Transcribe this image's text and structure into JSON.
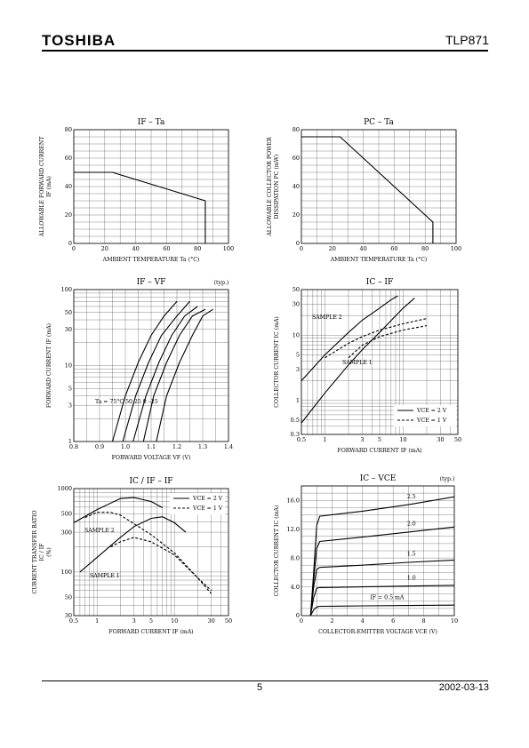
{
  "header": {
    "brand": "TOSHIBA",
    "part_number": "TLP871"
  },
  "footer": {
    "page": "5",
    "date": "2002-03-13"
  },
  "chart_data": [
    {
      "id": "if_ta",
      "type": "line",
      "title": "IF – Ta",
      "xlabel": "AMBIENT TEMPERATURE Ta (°C)",
      "ylabel_lines": [
        "ALLOWABLE FORWARD CURRENT",
        "IF (mA)"
      ],
      "xlim": [
        0,
        100
      ],
      "ylim": [
        0,
        80
      ],
      "x_ticks": [
        0,
        20,
        40,
        60,
        80,
        100
      ],
      "y_ticks": [
        0,
        20,
        40,
        60,
        80
      ],
      "grid": true,
      "xlog": false,
      "ylog": false,
      "series": [
        {
          "x": [
            0,
            25,
            85,
            85
          ],
          "y": [
            50,
            50,
            30,
            0
          ]
        }
      ]
    },
    {
      "id": "pc_ta",
      "type": "line",
      "title": "PC – Ta",
      "xlabel": "AMBIENT TEMPERATURE Ta (°C)",
      "ylabel_lines": [
        "ALLOWABLE COLLECTOR POWER",
        "DISSIPATION PC (mW)"
      ],
      "xlim": [
        0,
        100
      ],
      "ylim": [
        0,
        80
      ],
      "x_ticks": [
        0,
        20,
        40,
        60,
        80,
        100
      ],
      "y_ticks": [
        0,
        20,
        40,
        60,
        80
      ],
      "grid": true,
      "xlog": false,
      "ylog": false,
      "series": [
        {
          "x": [
            0,
            25,
            85,
            85
          ],
          "y": [
            75,
            75,
            15,
            0
          ]
        }
      ]
    },
    {
      "id": "if_vf",
      "type": "line",
      "title": "IF – VF",
      "title_note": "(typ.)",
      "xlabel": "FORWARD VOLTAGE VF (V)",
      "ylabel_lines": [
        "FORWARD CURRENT IF (mA)"
      ],
      "xlim": [
        0.8,
        1.4
      ],
      "ylim": [
        1,
        100
      ],
      "x_ticks": [
        "0.8",
        "0.9",
        "1.0",
        "1.1",
        "1.2",
        "1.3",
        "1.4"
      ],
      "y_ticks": [
        "1",
        "3",
        "5",
        "10",
        "30",
        "50",
        "100"
      ],
      "grid": true,
      "xlog": false,
      "ylog": true,
      "annotation": "Ta = 75°C 50 25 0 –25",
      "series": [
        {
          "x": [
            0.95,
            1.0,
            1.05,
            1.1,
            1.15,
            1.2
          ],
          "y": [
            1,
            4,
            11,
            25,
            45,
            70
          ]
        },
        {
          "x": [
            0.99,
            1.04,
            1.09,
            1.14,
            1.2,
            1.25
          ],
          "y": [
            1,
            4,
            11,
            25,
            45,
            70
          ]
        },
        {
          "x": [
            1.03,
            1.08,
            1.13,
            1.18,
            1.23,
            1.28
          ],
          "y": [
            1,
            4,
            11,
            25,
            45,
            60
          ]
        },
        {
          "x": [
            1.07,
            1.11,
            1.16,
            1.21,
            1.26,
            1.31
          ],
          "y": [
            1,
            4,
            11,
            25,
            45,
            55
          ]
        },
        {
          "x": [
            1.12,
            1.16,
            1.21,
            1.26,
            1.3,
            1.34
          ],
          "y": [
            1,
            4,
            11,
            25,
            45,
            55
          ]
        }
      ]
    },
    {
      "id": "ic_if",
      "type": "line",
      "title": "IC – IF",
      "xlabel": "FORWARD CURRENT IF (mA)",
      "ylabel_lines": [
        "COLLECTOR CURRENT IC (mA)"
      ],
      "xlim": [
        0.5,
        50
      ],
      "ylim": [
        0.3,
        50
      ],
      "x_ticks": [
        "0.5",
        "1",
        "3",
        "5",
        "10",
        "30",
        "50"
      ],
      "y_ticks": [
        "0.3",
        "0.5",
        "1",
        "3",
        "5",
        "10",
        "30",
        "50"
      ],
      "grid": true,
      "xlog": true,
      "ylog": true,
      "labels": [
        "SAMPLE 2",
        "SAMPLE 1"
      ],
      "legend": [
        "VCE = 2 V",
        "VCE = 1 V"
      ],
      "series": [
        {
          "dash": false,
          "x": [
            0.5,
            1,
            2,
            3,
            5,
            7,
            8.5
          ],
          "y": [
            2.0,
            5.0,
            11.0,
            17.0,
            26.0,
            35.0,
            40.0
          ]
        },
        {
          "dash": false,
          "x": [
            0.5,
            1,
            2,
            3,
            5,
            10,
            14
          ],
          "y": [
            0.45,
            1.3,
            3.5,
            6.0,
            11.0,
            26.0,
            37.0
          ]
        },
        {
          "dash": true,
          "x": [
            1,
            2,
            3,
            5,
            10,
            20
          ],
          "y": [
            4.5,
            7.5,
            9.5,
            12.0,
            15.0,
            18.0
          ]
        },
        {
          "dash": true,
          "x": [
            2,
            3,
            5,
            10,
            20
          ],
          "y": [
            4.5,
            7.0,
            9.5,
            12.0,
            14.0
          ]
        }
      ]
    },
    {
      "id": "ctr_if",
      "type": "line",
      "title": "IC / IF – IF",
      "xlabel": "FORWARD CURRENT IF (mA)",
      "ylabel_lines": [
        "CURRENT TRANSFER RATIO",
        "IC / IF",
        "(%)"
      ],
      "xlim": [
        0.5,
        50
      ],
      "ylim": [
        30,
        1000
      ],
      "x_ticks": [
        "0.5",
        "1",
        "3",
        "5",
        "10",
        "30",
        "50"
      ],
      "y_ticks": [
        "30",
        "50",
        "100",
        "300",
        "500",
        "1000"
      ],
      "grid": true,
      "xlog": true,
      "ylog": true,
      "labels": [
        "SAMPLE 2",
        "SAMPLE 1"
      ],
      "legend": [
        "VCE = 2 V",
        "VCE = 1 V"
      ],
      "series": [
        {
          "dash": false,
          "x": [
            0.5,
            1,
            2,
            3,
            5,
            7
          ],
          "y": [
            390,
            560,
            760,
            780,
            700,
            590
          ]
        },
        {
          "dash": false,
          "x": [
            0.6,
            1,
            2,
            3,
            5,
            7,
            10,
            14
          ],
          "y": [
            100,
            150,
            260,
            350,
            440,
            460,
            390,
            300
          ]
        },
        {
          "dash": true,
          "x": [
            0.7,
            1,
            1.5,
            2,
            3,
            5,
            10,
            20,
            30
          ],
          "y": [
            450,
            520,
            520,
            480,
            380,
            280,
            170,
            85,
            55
          ]
        },
        {
          "dash": true,
          "x": [
            1.5,
            2,
            3,
            5,
            10,
            20,
            30
          ],
          "y": [
            200,
            230,
            260,
            230,
            160,
            85,
            60
          ]
        }
      ]
    },
    {
      "id": "ic_vce",
      "type": "line",
      "title": "IC – VCE",
      "title_note": "(typ.)",
      "xlabel": "COLLECTOR-EMITTER VOLTAGE VCE (V)",
      "ylabel_lines": [
        "COLLECTOR CURRENT IC (mA)"
      ],
      "xlim": [
        0,
        10
      ],
      "ylim": [
        0,
        18
      ],
      "x_ticks": [
        "0",
        "2",
        "4",
        "6",
        "8",
        "10"
      ],
      "y_ticks": [
        "0",
        "4.0",
        "8.0",
        "12.0",
        "16.0"
      ],
      "grid": true,
      "xlog": false,
      "ylog": false,
      "curve_labels": [
        "2.5",
        "2.0",
        "1.5",
        "1.0",
        "IF = 0.5 mA"
      ],
      "series": [
        {
          "x": [
            0.6,
            0.8,
            1.0,
            1.2,
            4,
            7,
            10
          ],
          "y": [
            0,
            6,
            12.5,
            13.8,
            14.5,
            15.4,
            16.5
          ]
        },
        {
          "x": [
            0.6,
            0.8,
            1.0,
            1.2,
            4,
            7,
            10
          ],
          "y": [
            0,
            5,
            9.3,
            10.3,
            10.9,
            11.6,
            12.3
          ]
        },
        {
          "x": [
            0.6,
            0.8,
            1.0,
            1.2,
            4,
            7,
            10
          ],
          "y": [
            0,
            4,
            6.4,
            6.7,
            7.0,
            7.4,
            7.7
          ]
        },
        {
          "x": [
            0.6,
            0.8,
            1.0,
            1.2,
            4,
            7,
            10
          ],
          "y": [
            0,
            2.5,
            3.8,
            3.9,
            4.0,
            4.1,
            4.2
          ]
        },
        {
          "x": [
            0.6,
            0.8,
            1.0,
            1.2,
            4,
            7,
            10
          ],
          "y": [
            0,
            0.8,
            1.2,
            1.3,
            1.35,
            1.4,
            1.45
          ]
        }
      ]
    }
  ]
}
